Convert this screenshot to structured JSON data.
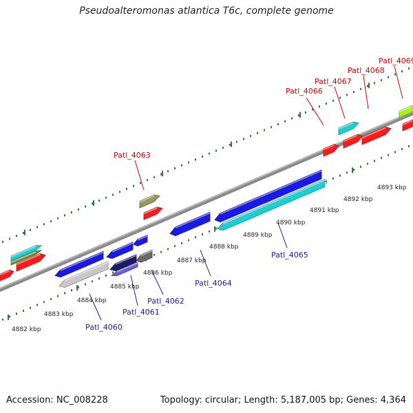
{
  "title": "Pseudoalteromonas atlantica T6c, complete genome",
  "footer": {
    "accession": "Accession: NC_008228",
    "stats": "Topology: circular; Length: 5,187,005 bp; Genes: 4,364"
  },
  "colors": {
    "backbone": "#8a8a8a",
    "tick": "#2d7a2d",
    "forward_label": "#d40000",
    "reverse_label": "#1a1aa8",
    "red_gene": "#ff1a1a",
    "blue_gene": "#1a1ae6",
    "cyan_gene": "#1fcfcf",
    "olive_gene": "#9a9a60",
    "lime_gene": "#a8f020",
    "gray_gene": "#c8c8c8",
    "dark_gene": "#6a6a6a",
    "violet_gene": "#6c5ccf"
  },
  "ruler_labels": [
    "4882 kbp",
    "4883 kbp",
    "4884 kbp",
    "4885 kbp",
    "4886 kbp",
    "4887 kbp",
    "4888 kbp",
    "4889 kbp",
    "4890 kbp",
    "4891 kbp",
    "4892 kbp",
    "4893 kbp"
  ],
  "gene_labels": {
    "forward": [
      "Patl_4063",
      "Patl_4066",
      "Patl_4067",
      "Patl_4068",
      "Patl_4069"
    ],
    "reverse": [
      "Patl_4060",
      "Patl_4061",
      "Patl_4062",
      "Patl_4064",
      "Patl_4065"
    ]
  }
}
